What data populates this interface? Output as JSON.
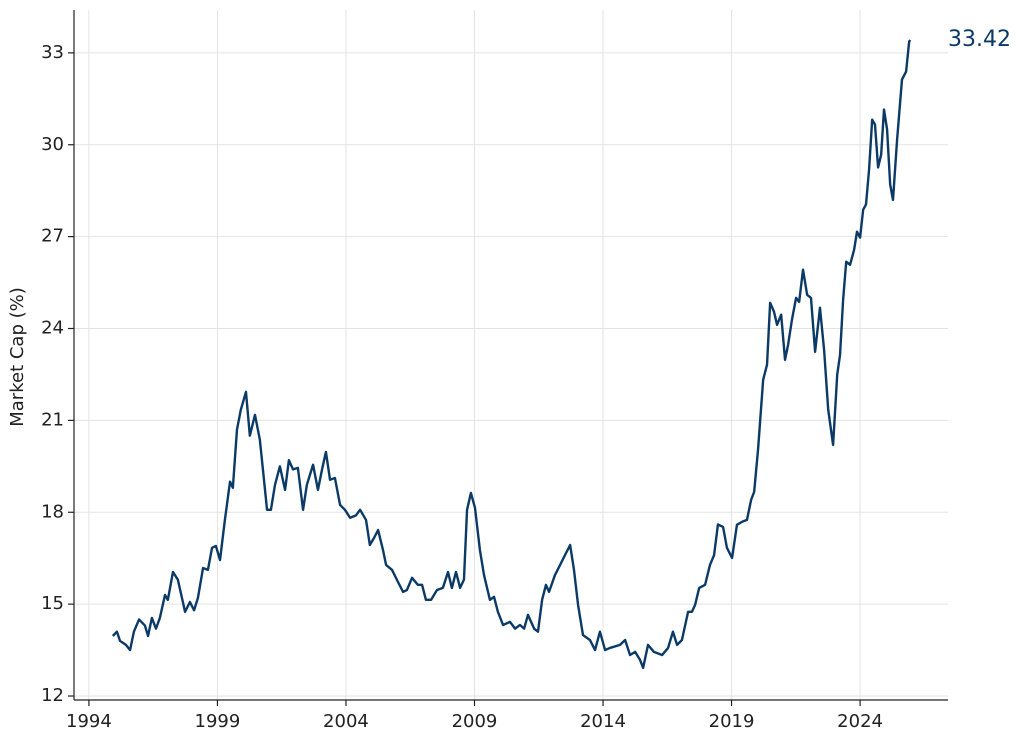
{
  "chart_data": {
    "type": "line",
    "y_label": "Market Cap (%)",
    "color": "#0b3a66",
    "grid": true,
    "xlim": [
      1993.42,
      2027.42
    ],
    "xticks": [
      1994,
      1999,
      2004,
      2009,
      2014,
      2019,
      2024
    ],
    "ylim": [
      11.87,
      34.4
    ],
    "yticks": [
      12,
      15,
      18,
      21,
      24,
      27,
      30,
      33
    ],
    "x": [
      1994.93,
      1995.09,
      1995.21,
      1995.44,
      1995.6,
      1995.75,
      1995.95,
      1996.18,
      1996.3,
      1996.45,
      1996.61,
      1996.76,
      1996.96,
      1997.07,
      1997.27,
      1997.46,
      1997.74,
      1997.93,
      1998.09,
      1998.24,
      1998.44,
      1998.63,
      1998.79,
      1998.94,
      1999.1,
      1999.29,
      1999.49,
      1999.6,
      1999.76,
      1999.91,
      2000.11,
      2000.26,
      2000.46,
      2000.65,
      2000.77,
      2000.93,
      2001.08,
      2001.24,
      2001.43,
      2001.63,
      2001.78,
      2001.94,
      2002.13,
      2002.33,
      2002.48,
      2002.72,
      2002.91,
      2003.07,
      2003.22,
      2003.38,
      2003.57,
      2003.77,
      2003.96,
      2004.16,
      2004.39,
      2004.55,
      2004.78,
      2004.93,
      2005.09,
      2005.25,
      2005.44,
      2005.56,
      2005.79,
      2006.02,
      2006.22,
      2006.37,
      2006.57,
      2006.8,
      2006.96,
      2007.11,
      2007.31,
      2007.54,
      2007.77,
      2007.97,
      2008.12,
      2008.28,
      2008.44,
      2008.59,
      2008.71,
      2008.86,
      2009.02,
      2009.21,
      2009.37,
      2009.6,
      2009.76,
      2009.91,
      2010.11,
      2010.38,
      2010.58,
      2010.77,
      2010.93,
      2011.08,
      2011.32,
      2011.47,
      2011.63,
      2011.78,
      2011.9,
      2012.13,
      2012.33,
      2012.52,
      2012.72,
      2012.87,
      2013.03,
      2013.22,
      2013.49,
      2013.69,
      2013.88,
      2014.08,
      2014.27,
      2014.66,
      2014.86,
      2015.05,
      2015.25,
      2015.44,
      2015.56,
      2015.75,
      2015.98,
      2016.3,
      2016.53,
      2016.72,
      2016.88,
      2017.07,
      2017.31,
      2017.46,
      2017.58,
      2017.74,
      2017.97,
      2018.16,
      2018.32,
      2018.47,
      2018.67,
      2018.82,
      2019.02,
      2019.21,
      2019.41,
      2019.6,
      2019.76,
      2019.88,
      2020.03,
      2020.23,
      2020.38,
      2020.5,
      2020.65,
      2020.77,
      2020.93,
      2021.08,
      2021.2,
      2021.35,
      2021.51,
      2021.63,
      2021.78,
      2021.94,
      2022.09,
      2022.25,
      2022.44,
      2022.6,
      2022.76,
      2022.95,
      2023.11,
      2023.22,
      2023.34,
      2023.46,
      2023.61,
      2023.77,
      2023.88,
      2024.0,
      2024.12,
      2024.23,
      2024.35,
      2024.47,
      2024.58,
      2024.7,
      2024.82,
      2024.93,
      2025.05,
      2025.17,
      2025.28,
      2025.44,
      2025.63,
      2025.79,
      2025.91,
      2025.95
    ],
    "values": [
      13.96,
      14.1,
      13.8,
      13.67,
      13.5,
      14.1,
      14.5,
      14.3,
      13.96,
      14.55,
      14.2,
      14.55,
      15.3,
      15.14,
      16.05,
      15.8,
      14.75,
      15.07,
      14.8,
      15.2,
      16.18,
      16.12,
      16.84,
      16.9,
      16.44,
      17.75,
      19.0,
      18.8,
      20.7,
      21.35,
      21.93,
      20.5,
      21.18,
      20.37,
      19.39,
      18.08,
      18.08,
      18.9,
      19.5,
      18.73,
      19.7,
      19.4,
      19.45,
      18.08,
      18.9,
      19.55,
      18.73,
      19.4,
      19.97,
      19.06,
      19.12,
      18.24,
      18.08,
      17.82,
      17.9,
      18.08,
      17.75,
      16.93,
      17.16,
      17.42,
      16.77,
      16.28,
      16.12,
      15.73,
      15.4,
      15.46,
      15.86,
      15.63,
      15.63,
      15.14,
      15.14,
      15.46,
      15.53,
      16.05,
      15.53,
      16.05,
      15.53,
      15.8,
      18.08,
      18.63,
      18.14,
      16.77,
      15.95,
      15.14,
      15.24,
      14.75,
      14.32,
      14.42,
      14.2,
      14.32,
      14.2,
      14.65,
      14.2,
      14.1,
      15.14,
      15.63,
      15.4,
      15.95,
      16.28,
      16.6,
      16.93,
      16.12,
      14.97,
      13.99,
      13.83,
      13.5,
      14.1,
      13.5,
      13.57,
      13.67,
      13.83,
      13.34,
      13.44,
      13.18,
      12.92,
      13.67,
      13.44,
      13.34,
      13.57,
      14.1,
      13.67,
      13.83,
      14.75,
      14.75,
      14.97,
      15.53,
      15.63,
      16.28,
      16.6,
      17.6,
      17.52,
      16.84,
      16.51,
      17.59,
      17.69,
      17.75,
      18.4,
      18.67,
      20.04,
      22.33,
      22.82,
      24.84,
      24.55,
      24.12,
      24.45,
      22.98,
      23.47,
      24.29,
      25.0,
      24.87,
      25.92,
      25.1,
      25.0,
      23.24,
      24.68,
      23.3,
      21.35,
      20.2,
      22.49,
      23.14,
      24.94,
      26.18,
      26.08,
      26.58,
      27.16,
      26.97,
      27.88,
      28.05,
      29.19,
      30.82,
      30.66,
      29.26,
      29.68,
      31.15,
      30.5,
      28.7,
      28.2,
      30.17,
      32.13,
      32.39,
      33.37,
      33.42
    ]
  }
}
